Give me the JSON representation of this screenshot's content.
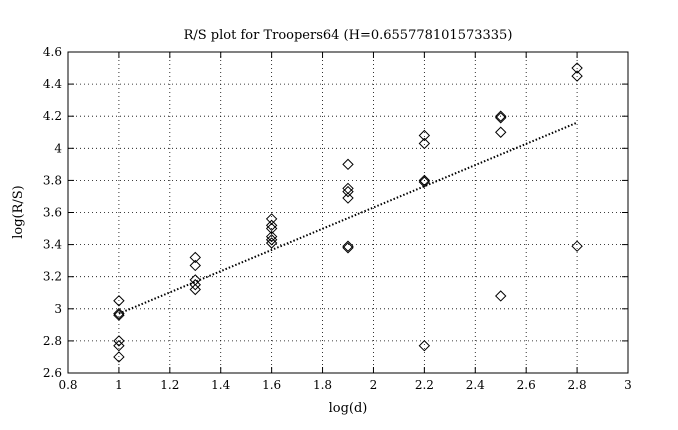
{
  "chart_data": {
    "type": "scatter",
    "title": "R/S plot for Troopers64 (H=0.655778101573335)",
    "xlabel": "log(d)",
    "ylabel": "log(R/S)",
    "xlim": [
      0.8,
      3
    ],
    "ylim": [
      2.6,
      4.6
    ],
    "xticks": [
      "0.8",
      "1",
      "1.2",
      "1.4",
      "1.6",
      "1.8",
      "2",
      "2.2",
      "2.4",
      "2.6",
      "2.8",
      "3"
    ],
    "yticks": [
      "2.6",
      "2.8",
      "3",
      "3.2",
      "3.4",
      "3.6",
      "3.8",
      "4",
      "4.2",
      "4.4",
      "4.6"
    ],
    "grid": true,
    "series": [
      {
        "marker": "diamond",
        "points": [
          [
            1.0,
            3.05
          ],
          [
            1.0,
            2.97
          ],
          [
            1.0,
            2.96
          ],
          [
            1.0,
            2.8
          ],
          [
            1.0,
            2.77
          ],
          [
            1.0,
            2.7
          ],
          [
            1.3,
            3.32
          ],
          [
            1.3,
            3.27
          ],
          [
            1.3,
            3.18
          ],
          [
            1.3,
            3.15
          ],
          [
            1.3,
            3.12
          ],
          [
            1.6,
            3.56
          ],
          [
            1.6,
            3.52
          ],
          [
            1.6,
            3.5
          ],
          [
            1.6,
            3.45
          ],
          [
            1.6,
            3.43
          ],
          [
            1.6,
            3.41
          ],
          [
            1.9,
            3.9
          ],
          [
            1.9,
            3.75
          ],
          [
            1.9,
            3.73
          ],
          [
            1.9,
            3.69
          ],
          [
            1.9,
            3.39
          ],
          [
            1.9,
            3.38
          ],
          [
            2.2,
            4.08
          ],
          [
            2.2,
            4.03
          ],
          [
            2.2,
            3.8
          ],
          [
            2.2,
            3.79
          ],
          [
            2.2,
            2.77
          ],
          [
            2.5,
            4.2
          ],
          [
            2.5,
            4.19
          ],
          [
            2.5,
            4.1
          ],
          [
            2.5,
            3.08
          ],
          [
            2.8,
            4.5
          ],
          [
            2.8,
            4.45
          ],
          [
            2.8,
            3.39
          ]
        ]
      }
    ],
    "fit_line": {
      "style": "dotted",
      "x": [
        1.0,
        2.8
      ],
      "y": [
        2.97,
        4.16
      ]
    }
  }
}
